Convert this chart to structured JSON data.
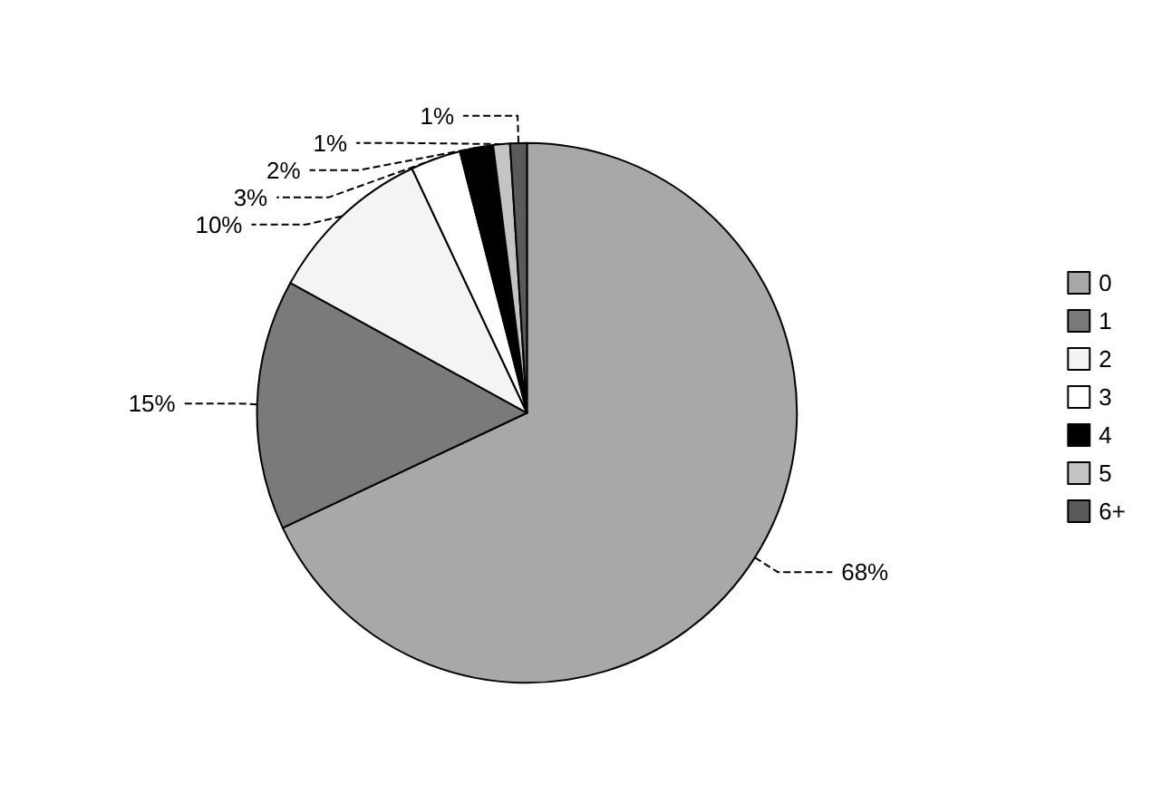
{
  "chart_data": {
    "type": "pie",
    "categories": [
      "0",
      "1",
      "2",
      "3",
      "4",
      "5",
      "6+"
    ],
    "values": [
      68,
      15,
      10,
      3,
      2,
      1,
      1
    ],
    "value_labels": [
      "68%",
      "15%",
      "10%",
      "3%",
      "2%",
      "1%",
      "1%"
    ],
    "colors": [
      "#a8a8a8",
      "#7a7a7a",
      "#f4f4f4",
      "#ffffff",
      "#000000",
      "#c4c4c4",
      "#5a5a5a"
    ],
    "legend": "right"
  }
}
